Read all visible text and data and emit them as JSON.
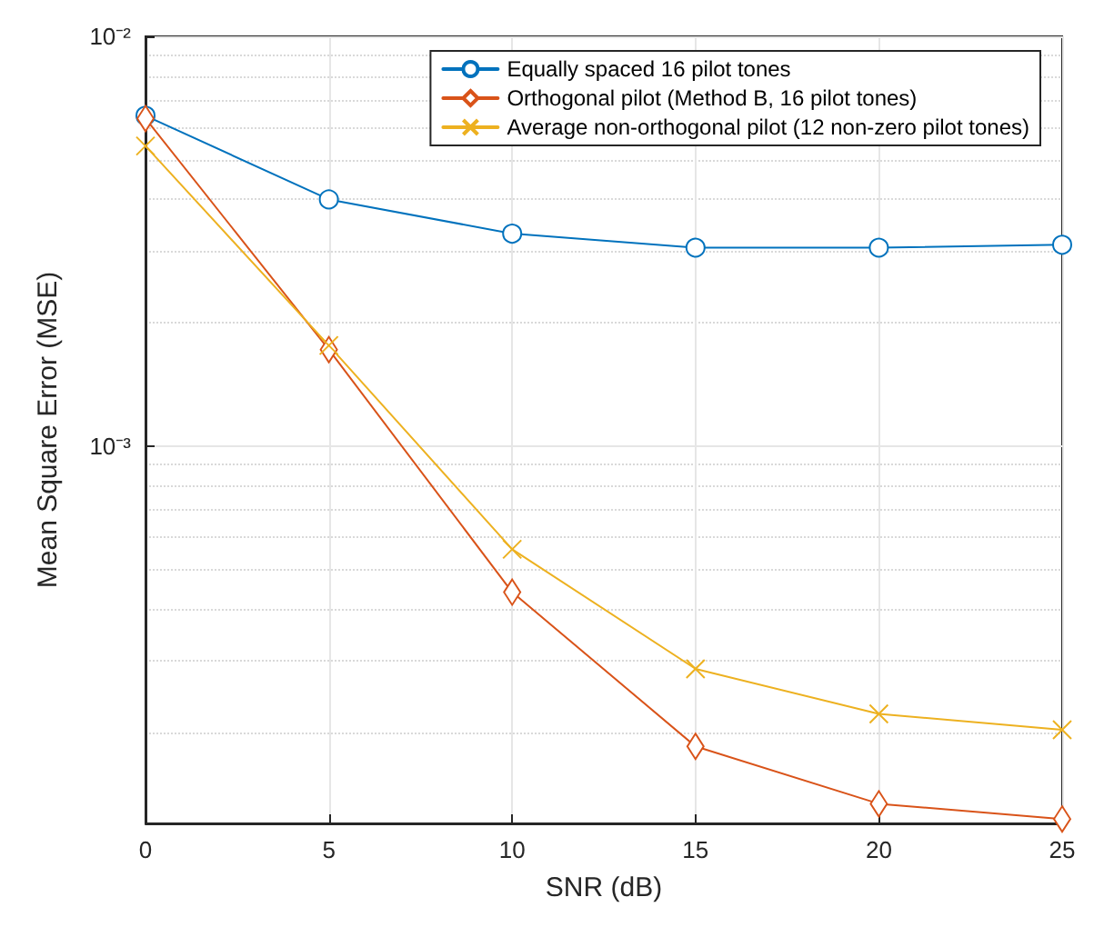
{
  "chart_data": {
    "type": "line",
    "xlabel": "SNR (dB)",
    "ylabel": "Mean Square Error (MSE)",
    "x": [
      0,
      5,
      10,
      15,
      20,
      25
    ],
    "series": [
      {
        "name": "Equally spaced 16 pilot tones",
        "color": "#0072bd",
        "marker": "circle",
        "values": [
          0.0064,
          0.004,
          0.0033,
          0.00305,
          0.00305,
          0.0031
        ]
      },
      {
        "name": "Orthogonal pilot (Method B, 16 pilot tones)",
        "color": "#d95319",
        "marker": "diamond",
        "values": [
          0.0063,
          0.00172,
          0.00044,
          0.000185,
          0.000134,
          0.000123
        ]
      },
      {
        "name": "Average non-orthogonal pilot (12 non-zero pilot tones)",
        "color": "#edb120",
        "marker": "cross",
        "values": [
          0.0054,
          0.00176,
          0.00056,
          0.000286,
          0.000222,
          0.000203
        ]
      }
    ],
    "xlim": [
      0,
      25
    ],
    "xticks": [
      0,
      5,
      10,
      15,
      20,
      25
    ],
    "ylim": [
      0.00012,
      0.01
    ],
    "yticks": [
      {
        "value": 0.001,
        "label": "10⁻³"
      },
      {
        "value": 0.01,
        "label": "10⁻²"
      }
    ],
    "log": "y",
    "grid": true,
    "legend": "top right",
    "line_style": "solid"
  }
}
